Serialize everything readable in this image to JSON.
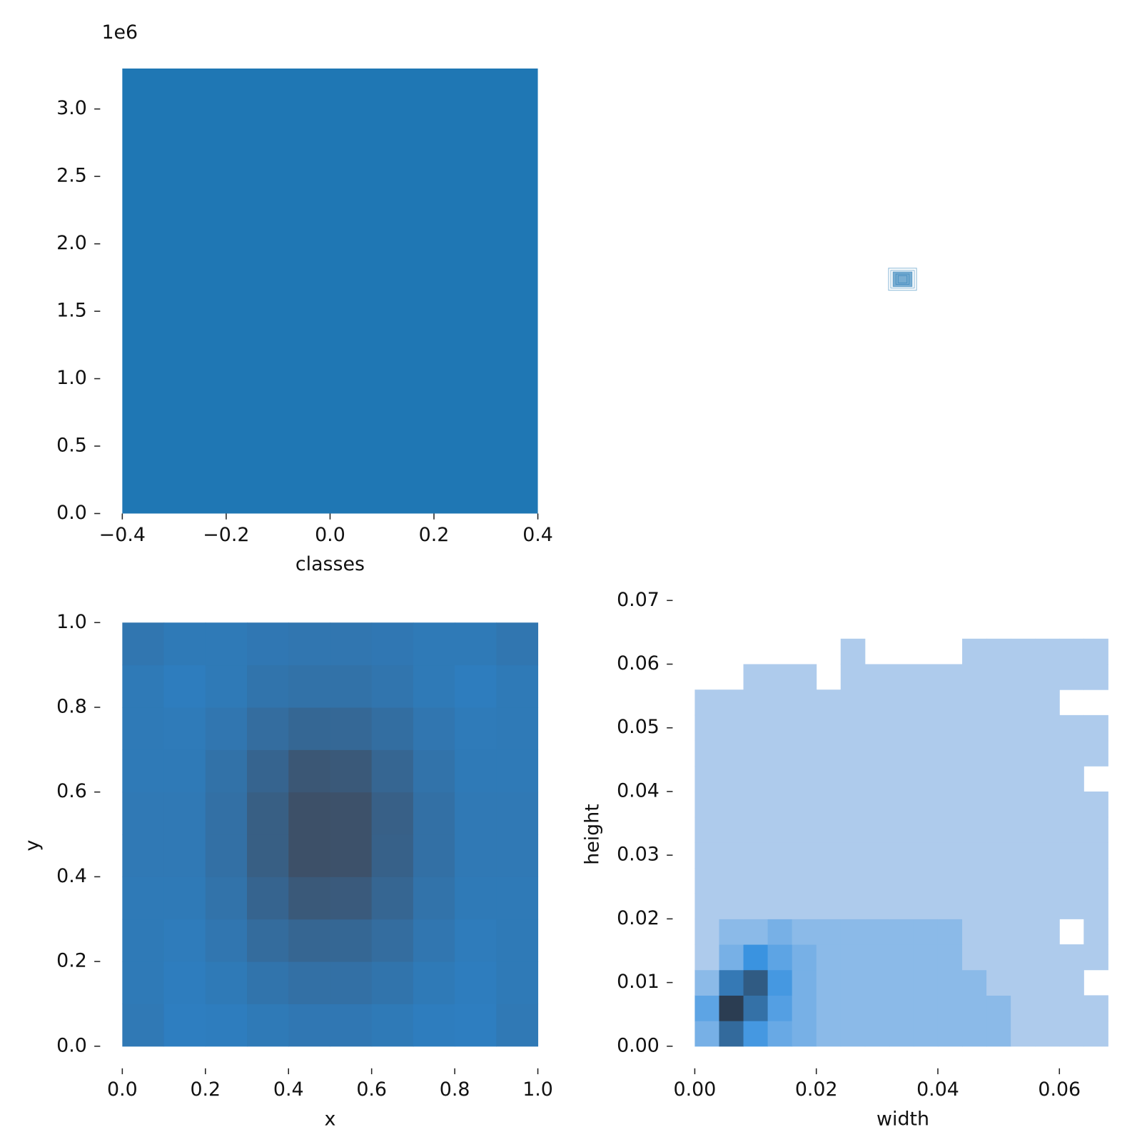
{
  "chart_data": [
    {
      "type": "histogram",
      "bins": [
        -0.4,
        0.4
      ],
      "values": [
        3300000
      ],
      "color": "#1f77b4",
      "xlim": [
        -0.4,
        0.4
      ],
      "ylim": [
        0,
        3300000
      ],
      "xticks": [
        {
          "value": -0.4,
          "label": "−0.4"
        },
        {
          "value": -0.2,
          "label": "−0.2"
        },
        {
          "value": 0,
          "label": "0.0"
        },
        0.2,
        0.4
      ],
      "yticks": [
        {
          "value": 0,
          "label": "0.0"
        },
        {
          "value": 500000,
          "label": "0.5"
        },
        {
          "value": 1000000,
          "label": "1.0"
        },
        {
          "value": 1500000,
          "label": "1.5"
        },
        {
          "value": 2000000,
          "label": "2.0"
        },
        {
          "value": 2500000,
          "label": "2.5"
        },
        {
          "value": 3000000,
          "label": "3.0"
        }
      ],
      "y_offset_label": "1e6",
      "xlabel": "classes"
    },
    {
      "type": "heatmap",
      "xbins": [
        0,
        0.1,
        0.2,
        0.3,
        0.4,
        0.5,
        0.6,
        0.7,
        0.8,
        0.9,
        1
      ],
      "ybins": [
        0,
        0.1,
        0.2,
        0.3,
        0.4,
        0.5,
        0.6,
        0.7,
        0.8,
        0.9,
        1
      ],
      "values": [
        [
          30,
          20,
          22,
          28,
          32,
          32,
          28,
          22,
          20,
          30
        ],
        [
          28,
          22,
          28,
          38,
          45,
          45,
          38,
          28,
          22,
          28
        ],
        [
          28,
          25,
          35,
          52,
          62,
          60,
          50,
          35,
          25,
          28
        ],
        [
          28,
          28,
          40,
          65,
          85,
          82,
          62,
          40,
          28,
          28
        ],
        [
          30,
          30,
          45,
          75,
          100,
          98,
          70,
          45,
          30,
          30
        ],
        [
          30,
          30,
          45,
          75,
          100,
          98,
          72,
          45,
          30,
          30
        ],
        [
          28,
          28,
          42,
          65,
          88,
          85,
          62,
          40,
          28,
          28
        ],
        [
          28,
          26,
          35,
          50,
          60,
          58,
          48,
          35,
          26,
          28
        ],
        [
          28,
          22,
          28,
          38,
          42,
          42,
          36,
          28,
          22,
          28
        ],
        [
          35,
          28,
          28,
          32,
          35,
          35,
          32,
          28,
          28,
          35
        ]
      ],
      "colors": [
        "#2a8ad6",
        "#3d5068"
      ],
      "log": false,
      "xlim": [
        0,
        1
      ],
      "ylim": [
        0,
        1
      ],
      "xticks": [
        {
          "value": 0,
          "label": "0.0"
        },
        0.2,
        0.4,
        0.6,
        0.8,
        {
          "value": 1,
          "label": "1.0"
        }
      ],
      "yticks": [
        {
          "value": 0,
          "label": "0.0"
        },
        0.2,
        0.4,
        0.6,
        0.8,
        {
          "value": 1,
          "label": "1.0"
        }
      ],
      "xlabel": "x",
      "ylabel": "y"
    },
    {
      "type": "heatmap",
      "xbins": [
        0,
        0.004,
        0.008,
        0.012,
        0.016,
        0.02,
        0.024,
        0.028,
        0.032,
        0.036,
        0.04,
        0.044,
        0.048,
        0.052,
        0.056,
        0.06,
        0.064,
        0.068
      ],
      "ybins": [
        0,
        0.004,
        0.008,
        0.012,
        0.016,
        0.02,
        0.024,
        0.028,
        0.032,
        0.036,
        0.04,
        0.044,
        0.048,
        0.052,
        0.056,
        0.06,
        0.064
      ],
      "values": [
        [
          3,
          30,
          8,
          4,
          3,
          2,
          2,
          2,
          2,
          2,
          2,
          2,
          2,
          1,
          1,
          1,
          1
        ],
        [
          5,
          100,
          25,
          6,
          3,
          2,
          2,
          2,
          2,
          2,
          2,
          2,
          2,
          1,
          1,
          1,
          1
        ],
        [
          2,
          20,
          45,
          8,
          3,
          2,
          2,
          2,
          2,
          2,
          2,
          2,
          1,
          1,
          1,
          1,
          0
        ],
        [
          1,
          3,
          10,
          5,
          3,
          2,
          2,
          2,
          2,
          2,
          2,
          1,
          1,
          1,
          1,
          1,
          1
        ],
        [
          1,
          2,
          2,
          3,
          2,
          2,
          2,
          2,
          2,
          2,
          2,
          1,
          1,
          1,
          1,
          0,
          1
        ],
        [
          1,
          1,
          1,
          1,
          1,
          1,
          1,
          1,
          1,
          1,
          1,
          1,
          1,
          1,
          1,
          1,
          1
        ],
        [
          1,
          1,
          1,
          1,
          1,
          1,
          1,
          1,
          1,
          1,
          1,
          1,
          1,
          1,
          1,
          1,
          1
        ],
        [
          1,
          1,
          1,
          1,
          1,
          1,
          1,
          1,
          1,
          1,
          1,
          1,
          1,
          1,
          1,
          1,
          1
        ],
        [
          1,
          1,
          1,
          1,
          1,
          1,
          1,
          1,
          1,
          1,
          1,
          1,
          1,
          1,
          1,
          1,
          1
        ],
        [
          1,
          1,
          1,
          1,
          1,
          1,
          1,
          1,
          1,
          1,
          1,
          1,
          1,
          1,
          1,
          1,
          1
        ],
        [
          1,
          1,
          1,
          1,
          1,
          1,
          1,
          1,
          1,
          1,
          1,
          1,
          1,
          1,
          1,
          1,
          0
        ],
        [
          1,
          1,
          1,
          1,
          1,
          1,
          1,
          1,
          1,
          1,
          1,
          1,
          1,
          1,
          1,
          1,
          1
        ],
        [
          1,
          1,
          1,
          1,
          1,
          1,
          1,
          1,
          1,
          1,
          1,
          1,
          1,
          1,
          1,
          1,
          1
        ],
        [
          1,
          1,
          1,
          1,
          1,
          1,
          1,
          1,
          1,
          1,
          1,
          1,
          1,
          1,
          1,
          0,
          0
        ],
        [
          0,
          0,
          1,
          1,
          1,
          0,
          1,
          1,
          1,
          1,
          1,
          1,
          1,
          1,
          1,
          1,
          1
        ],
        [
          0,
          0,
          0,
          0,
          0,
          0,
          1,
          0,
          0,
          0,
          0,
          1,
          1,
          1,
          1,
          1,
          1
        ]
      ],
      "colors": [
        "#aecbec",
        "#3a93e0",
        "#2b3d52"
      ],
      "log": true,
      "xlim": [
        0,
        0.0685
      ],
      "ylim": [
        0,
        0.07
      ],
      "xticks": [
        {
          "value": 0,
          "label": "0.00"
        },
        0.02,
        0.04,
        0.06
      ],
      "yticks": [
        {
          "value": 0,
          "label": "0.00"
        },
        0.01,
        0.02,
        0.03,
        0.04,
        0.05,
        0.06,
        0.07
      ],
      "xlabel": "width",
      "ylabel": "height"
    }
  ]
}
